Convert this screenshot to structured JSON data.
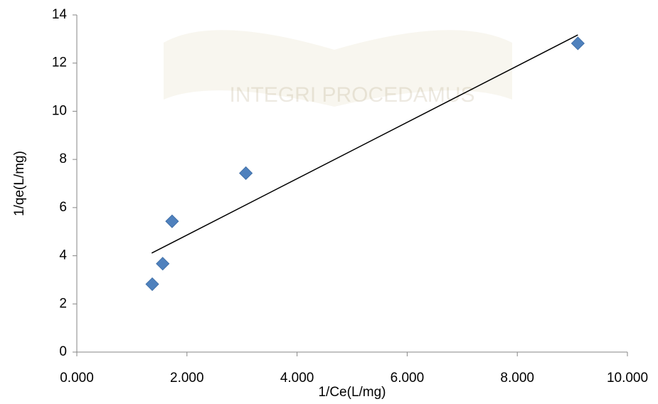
{
  "chart_data": {
    "type": "scatter",
    "x_label": "1/Ce(L/mg)",
    "y_label": "1/qe(L/mg)",
    "watermark": "INTEGRI PROCEDAMUS",
    "series": [
      {
        "color": "#4f81bd",
        "x": [
          1.37,
          1.56,
          1.73,
          3.07,
          9.1
        ],
        "values": [
          2.82,
          3.67,
          5.43,
          7.43,
          12.82
        ]
      }
    ],
    "trendline": {
      "color": "#000000",
      "x": [
        1.36,
        9.1
      ],
      "values": [
        4.11,
        13.17
      ]
    },
    "xlim": [
      0,
      10
    ],
    "ylim": [
      0,
      14
    ],
    "xticks": [
      {
        "value": 0,
        "label": "0.000"
      },
      {
        "value": 2,
        "label": "2.000"
      },
      {
        "value": 4,
        "label": "4.000"
      },
      {
        "value": 6,
        "label": "6.000"
      },
      {
        "value": 8,
        "label": "8.000"
      },
      {
        "value": 10,
        "label": "10.000"
      }
    ],
    "yticks": [
      0,
      2,
      4,
      6,
      8,
      10,
      12,
      14
    ],
    "grid": false
  }
}
